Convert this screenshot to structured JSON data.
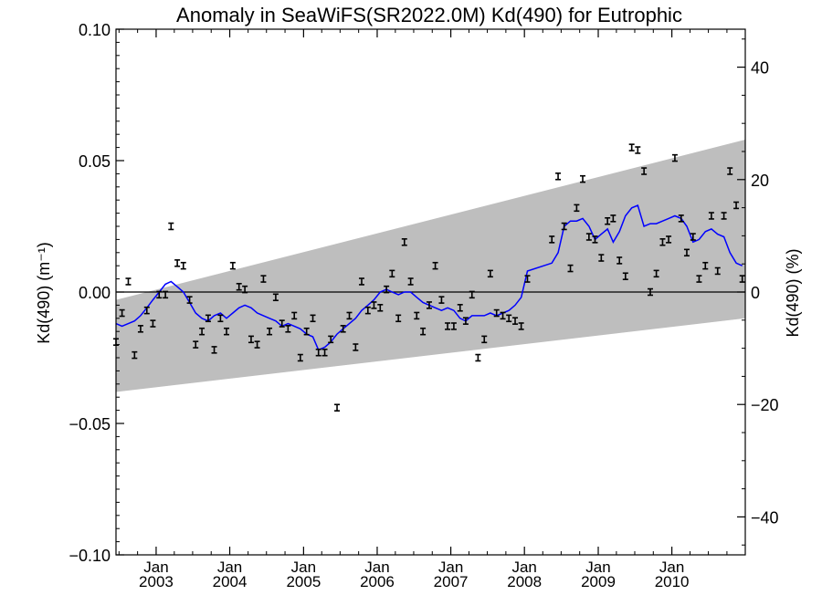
{
  "chart_data": {
    "type": "line",
    "title": "Anomaly in SeaWiFS(SR2022.0M) Kd(490) for Eutrophic",
    "ylabel_left": "Kd(490) (m⁻¹)",
    "ylabel_right": "Kd(490) (%)",
    "ylim_left": [
      -0.1,
      0.1
    ],
    "ylim_right": [
      -46.75,
      46.75
    ],
    "xlim": [
      "2002-06-16",
      "2010-12-31"
    ],
    "yticks_left": [
      "0.10",
      "0.05",
      "0.00",
      "−0.05",
      "−0.10"
    ],
    "yticks_left_values": [
      0.1,
      0.05,
      0.0,
      -0.05,
      -0.1
    ],
    "yticks_right": [
      "40",
      "20",
      "0",
      "−20",
      "−40"
    ],
    "yticks_right_values": [
      40,
      20,
      0,
      -20,
      -40
    ],
    "xticks": [
      {
        "date": "2003-01-01",
        "month": "Jan",
        "year": "2003"
      },
      {
        "date": "2004-01-01",
        "month": "Jan",
        "year": "2004"
      },
      {
        "date": "2005-01-01",
        "month": "Jan",
        "year": "2005"
      },
      {
        "date": "2006-01-01",
        "month": "Jan",
        "year": "2006"
      },
      {
        "date": "2007-01-01",
        "month": "Jan",
        "year": "2007"
      },
      {
        "date": "2008-01-01",
        "month": "Jan",
        "year": "2008"
      },
      {
        "date": "2009-01-01",
        "month": "Jan",
        "year": "2009"
      },
      {
        "date": "2010-01-01",
        "month": "Jan",
        "year": "2010"
      }
    ],
    "band": {
      "x": [
        "2002-06-16",
        "2010-12-31"
      ],
      "upper": [
        -0.003,
        0.058
      ],
      "lower": [
        -0.038,
        -0.01
      ],
      "color": "#bebebe"
    },
    "zero_line": 0.0,
    "series": [
      {
        "kind": "monthly anomaly with error bars",
        "color": "#000000",
        "x": [
          "2002-06-16",
          "2002-07-16",
          "2002-08-16",
          "2002-09-16",
          "2002-10-16",
          "2002-11-16",
          "2002-12-16",
          "2003-01-16",
          "2003-02-16",
          "2003-03-16",
          "2003-04-16",
          "2003-05-16",
          "2003-06-16",
          "2003-07-16",
          "2003-08-16",
          "2003-09-16",
          "2003-10-16",
          "2003-11-16",
          "2003-12-16",
          "2004-01-16",
          "2004-02-16",
          "2004-03-16",
          "2004-04-16",
          "2004-05-16",
          "2004-06-16",
          "2004-07-16",
          "2004-08-16",
          "2004-09-16",
          "2004-10-16",
          "2004-11-16",
          "2004-12-16",
          "2005-01-16",
          "2005-02-16",
          "2005-03-16",
          "2005-04-16",
          "2005-05-16",
          "2005-06-16",
          "2005-07-16",
          "2005-08-16",
          "2005-09-16",
          "2005-10-16",
          "2005-11-16",
          "2005-12-16",
          "2006-01-16",
          "2006-02-16",
          "2006-03-16",
          "2006-04-16",
          "2006-05-16",
          "2006-06-16",
          "2006-07-16",
          "2006-08-16",
          "2006-09-16",
          "2006-10-16",
          "2006-11-16",
          "2006-12-16",
          "2007-01-16",
          "2007-02-16",
          "2007-03-16",
          "2007-04-16",
          "2007-05-16",
          "2007-06-16",
          "2007-07-16",
          "2007-08-16",
          "2007-09-16",
          "2007-10-16",
          "2007-11-16",
          "2007-12-16",
          "2008-01-16",
          "2008-05-16",
          "2008-06-16",
          "2008-07-16",
          "2008-08-16",
          "2008-09-16",
          "2008-10-16",
          "2008-11-16",
          "2008-12-16",
          "2009-01-16",
          "2009-02-16",
          "2009-03-16",
          "2009-04-16",
          "2009-05-16",
          "2009-06-16",
          "2009-07-16",
          "2009-08-16",
          "2009-09-16",
          "2009-10-16",
          "2009-11-16",
          "2009-12-16",
          "2010-01-16",
          "2010-02-16",
          "2010-03-16",
          "2010-04-16",
          "2010-05-16",
          "2010-06-16",
          "2010-07-16",
          "2010-08-16",
          "2010-09-16",
          "2010-10-16",
          "2010-11-16",
          "2010-12-16"
        ],
        "y": [
          -0.019,
          -0.008,
          0.004,
          -0.024,
          -0.014,
          -0.007,
          -0.012,
          -0.001,
          -0.001,
          0.025,
          0.011,
          0.01,
          -0.003,
          -0.02,
          -0.015,
          -0.01,
          -0.022,
          -0.01,
          -0.015,
          0.01,
          0.002,
          0.001,
          -0.018,
          -0.02,
          0.005,
          -0.015,
          -0.002,
          -0.012,
          -0.014,
          -0.009,
          -0.025,
          -0.015,
          -0.01,
          -0.023,
          -0.023,
          -0.018,
          -0.044,
          -0.014,
          -0.009,
          -0.021,
          0.004,
          -0.007,
          -0.005,
          -0.006,
          0.001,
          0.007,
          -0.01,
          0.019,
          0.004,
          -0.009,
          -0.015,
          -0.005,
          0.01,
          -0.003,
          -0.013,
          -0.013,
          -0.006,
          -0.011,
          -0.001,
          -0.025,
          -0.018,
          0.007,
          -0.008,
          -0.009,
          -0.01,
          -0.011,
          -0.013,
          0.005,
          0.02,
          0.044,
          0.025,
          0.009,
          0.032,
          0.043,
          0.021,
          0.02,
          0.013,
          0.027,
          0.028,
          0.012,
          0.006,
          0.055,
          0.054,
          0.046,
          0.0,
          0.007,
          0.019,
          0.02,
          0.051,
          0.028,
          0.015,
          0.021,
          0.005,
          0.01,
          0.029,
          0.008,
          0.029,
          0.046,
          0.033,
          0.005
        ],
        "err": 0.0012
      },
      {
        "kind": "running mean",
        "color": "#0000ff",
        "x": [
          "2002-06-16",
          "2002-07-16",
          "2002-08-16",
          "2002-09-16",
          "2002-10-16",
          "2002-11-16",
          "2002-12-16",
          "2003-01-16",
          "2003-02-16",
          "2003-03-16",
          "2003-04-16",
          "2003-05-16",
          "2003-06-16",
          "2003-07-16",
          "2003-08-16",
          "2003-09-16",
          "2003-10-16",
          "2003-11-16",
          "2003-12-16",
          "2004-01-16",
          "2004-02-16",
          "2004-03-16",
          "2004-04-16",
          "2004-05-16",
          "2004-06-16",
          "2004-07-16",
          "2004-08-16",
          "2004-09-16",
          "2004-10-16",
          "2004-11-16",
          "2004-12-16",
          "2005-01-16",
          "2005-02-16",
          "2005-03-16",
          "2005-04-16",
          "2005-05-16",
          "2005-06-16",
          "2005-07-16",
          "2005-08-16",
          "2005-09-16",
          "2005-10-16",
          "2005-11-16",
          "2005-12-16",
          "2006-01-16",
          "2006-02-16",
          "2006-03-16",
          "2006-04-16",
          "2006-05-16",
          "2006-06-16",
          "2006-07-16",
          "2006-08-16",
          "2006-09-16",
          "2006-10-16",
          "2006-11-16",
          "2006-12-16",
          "2007-01-16",
          "2007-02-16",
          "2007-03-16",
          "2007-04-16",
          "2007-05-16",
          "2007-06-16",
          "2007-07-16",
          "2007-08-16",
          "2007-09-16",
          "2007-10-16",
          "2007-11-16",
          "2007-12-16",
          "2008-01-16",
          "2008-05-16",
          "2008-06-16",
          "2008-07-16",
          "2008-08-16",
          "2008-09-16",
          "2008-10-16",
          "2008-11-16",
          "2008-12-16",
          "2009-01-16",
          "2009-02-16",
          "2009-03-16",
          "2009-04-16",
          "2009-05-16",
          "2009-06-16",
          "2009-07-16",
          "2009-08-16",
          "2009-09-16",
          "2009-10-16",
          "2009-11-16",
          "2009-12-16",
          "2010-01-16",
          "2010-02-16",
          "2010-03-16",
          "2010-04-16",
          "2010-05-16",
          "2010-06-16",
          "2010-07-16",
          "2010-08-16",
          "2010-09-16",
          "2010-10-16",
          "2010-11-16",
          "2010-12-16"
        ],
        "y": [
          -0.012,
          -0.013,
          -0.012,
          -0.011,
          -0.009,
          -0.006,
          -0.003,
          0.0,
          0.003,
          0.004,
          0.002,
          0.0,
          -0.004,
          -0.008,
          -0.01,
          -0.011,
          -0.009,
          -0.008,
          -0.01,
          -0.008,
          -0.006,
          -0.005,
          -0.006,
          -0.008,
          -0.009,
          -0.01,
          -0.011,
          -0.013,
          -0.012,
          -0.013,
          -0.014,
          -0.016,
          -0.017,
          -0.022,
          -0.021,
          -0.019,
          -0.016,
          -0.014,
          -0.012,
          -0.01,
          -0.007,
          -0.005,
          -0.003,
          0.0,
          0.001,
          0.0,
          -0.001,
          0.0,
          0.0,
          -0.002,
          -0.004,
          -0.005,
          -0.006,
          -0.007,
          -0.006,
          -0.007,
          -0.01,
          -0.011,
          -0.009,
          -0.009,
          -0.009,
          -0.008,
          -0.009,
          -0.008,
          -0.007,
          -0.005,
          -0.002,
          0.008,
          0.011,
          0.015,
          0.025,
          0.027,
          0.027,
          0.028,
          0.025,
          0.02,
          0.022,
          0.024,
          0.019,
          0.023,
          0.029,
          0.032,
          0.033,
          0.025,
          0.026,
          0.026,
          0.027,
          0.028,
          0.029,
          0.028,
          0.025,
          0.019,
          0.02,
          0.023,
          0.024,
          0.022,
          0.021,
          0.015,
          0.011,
          0.01
        ]
      }
    ]
  }
}
